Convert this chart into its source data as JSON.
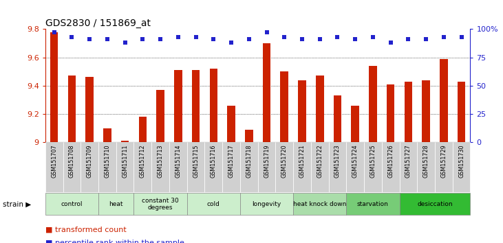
{
  "title": "GDS2830 / 151869_at",
  "samples": [
    "GSM151707",
    "GSM151708",
    "GSM151709",
    "GSM151710",
    "GSM151711",
    "GSM151712",
    "GSM151713",
    "GSM151714",
    "GSM151715",
    "GSM151716",
    "GSM151717",
    "GSM151718",
    "GSM151719",
    "GSM151720",
    "GSM151721",
    "GSM151722",
    "GSM151723",
    "GSM151724",
    "GSM151725",
    "GSM151726",
    "GSM151727",
    "GSM151728",
    "GSM151729",
    "GSM151730"
  ],
  "bar_values": [
    9.78,
    9.47,
    9.46,
    9.1,
    9.01,
    9.18,
    9.37,
    9.51,
    9.51,
    9.52,
    9.26,
    9.09,
    9.7,
    9.5,
    9.44,
    9.47,
    9.33,
    9.26,
    9.54,
    9.41,
    9.43,
    9.44,
    9.59,
    9.43
  ],
  "percentile_values": [
    97,
    93,
    91,
    91,
    88,
    91,
    91,
    93,
    93,
    91,
    88,
    91,
    97,
    93,
    91,
    91,
    93,
    91,
    93,
    88,
    91,
    91,
    93,
    93
  ],
  "ymin": 9.0,
  "ymax": 9.8,
  "bar_color": "#cc2200",
  "dot_color": "#2222cc",
  "label_bg": "#d0d0d0",
  "groups": [
    {
      "label": "control",
      "start": 0,
      "end": 3,
      "color": "#cceecc"
    },
    {
      "label": "heat",
      "start": 3,
      "end": 5,
      "color": "#cceecc"
    },
    {
      "label": "constant 30\ndegrees",
      "start": 5,
      "end": 8,
      "color": "#cceecc"
    },
    {
      "label": "cold",
      "start": 8,
      "end": 11,
      "color": "#cceecc"
    },
    {
      "label": "longevity",
      "start": 11,
      "end": 14,
      "color": "#cceecc"
    },
    {
      "label": "heat knock down",
      "start": 14,
      "end": 17,
      "color": "#aaddaa"
    },
    {
      "label": "starvation",
      "start": 17,
      "end": 20,
      "color": "#77cc77"
    },
    {
      "label": "desiccation",
      "start": 20,
      "end": 24,
      "color": "#33bb33"
    }
  ],
  "legend": [
    {
      "label": "transformed count",
      "color": "#cc2200"
    },
    {
      "label": "percentile rank within the sample",
      "color": "#2222cc"
    }
  ]
}
